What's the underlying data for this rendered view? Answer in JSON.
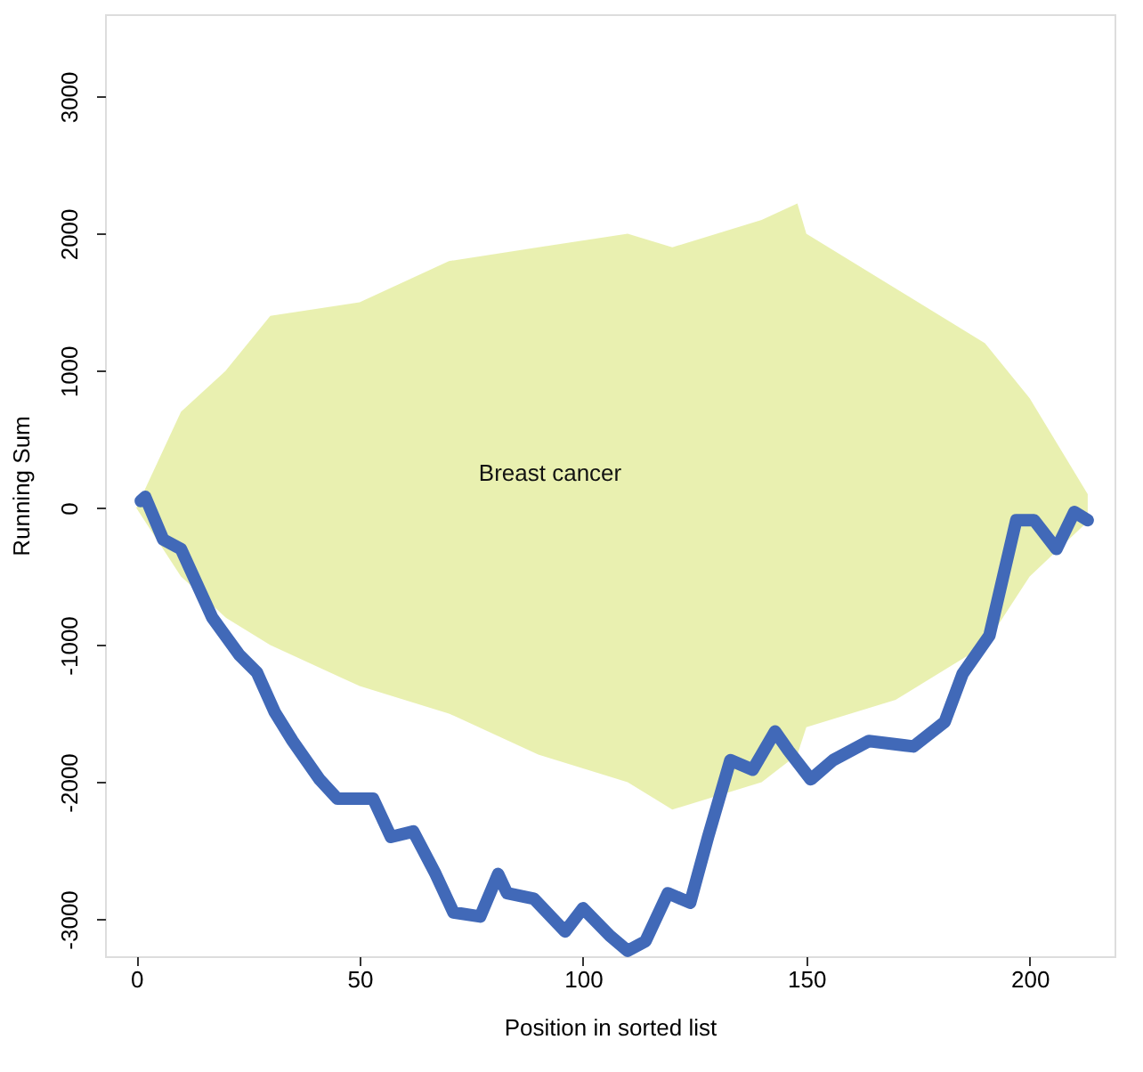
{
  "chart_data": {
    "type": "line",
    "xlabel": "Position in sorted list",
    "ylabel": "Running Sum",
    "xlim": [
      -7,
      219
    ],
    "ylim": [
      -3270,
      3600
    ],
    "xticks": [
      0,
      50,
      100,
      150,
      200
    ],
    "yticks": [
      -3000,
      -2000,
      -1000,
      0,
      1000,
      2000,
      3000
    ],
    "grid": false,
    "legend": false,
    "line_style": "solid",
    "annotations": [
      "Breast cancer"
    ],
    "series": [
      {
        "color": "#e4ec9c",
        "x": [
          0,
          10,
          20,
          30,
          50,
          70,
          90,
          110,
          120,
          140,
          148,
          150,
          170,
          190,
          200,
          213
        ],
        "values": [
          null,
          null,
          null,
          null,
          null,
          null,
          null,
          null,
          null,
          null,
          null,
          null,
          null,
          null,
          null,
          null
        ],
        "lower": [
          0,
          -500,
          -800,
          -1000,
          -1300,
          -1500,
          -1800,
          -2000,
          -2200,
          -2000,
          -1800,
          -1600,
          -1400,
          -1000,
          -500,
          -100
        ],
        "upper": [
          0,
          700,
          1000,
          1400,
          1500,
          1800,
          1900,
          2000,
          1900,
          2100,
          2220,
          2000,
          1600,
          1200,
          800,
          100
        ]
      },
      {
        "color": "#4169b8",
        "x": [
          1,
          2,
          6,
          10,
          17,
          23,
          27,
          31,
          35,
          41,
          45,
          53,
          57,
          62,
          67,
          71,
          77,
          81,
          83,
          89,
          96,
          100,
          106,
          110,
          114,
          119,
          124,
          128,
          133,
          138,
          143,
          146,
          151,
          156,
          164,
          174,
          181,
          185,
          191,
          197,
          201,
          206,
          210,
          213
        ],
        "values": [
          50,
          80,
          -230,
          -300,
          -800,
          -1070,
          -1200,
          -1490,
          -1700,
          -1980,
          -2120,
          -2120,
          -2400,
          -2360,
          -2670,
          -2950,
          -2980,
          -2670,
          -2810,
          -2850,
          -3090,
          -2920,
          -3120,
          -3230,
          -3160,
          -2810,
          -2880,
          -2400,
          -1840,
          -1910,
          -1630,
          -1770,
          -1980,
          -1840,
          -1700,
          -1740,
          -1560,
          -1210,
          -930,
          -90,
          -90,
          -300,
          -30,
          -90
        ]
      }
    ]
  }
}
